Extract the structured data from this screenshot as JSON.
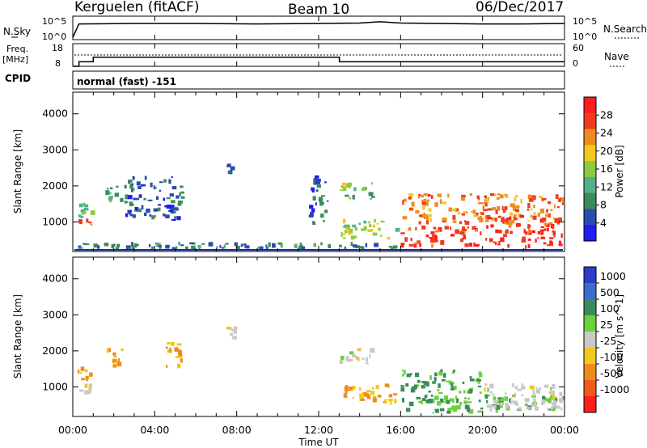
{
  "header": {
    "station": "Kerguelen (fitACF)",
    "beam": "Beam 10",
    "date": "06/Dec/2017"
  },
  "noise_panel": {
    "left_label": "N.Sky",
    "left_ticks": [
      "10^5",
      "10^0"
    ],
    "right_label": "N.Search",
    "right_ticks": [
      "10^5",
      "10^0"
    ]
  },
  "freq_panel": {
    "left_label_1": "Freq.",
    "left_label_2": "[MHz]",
    "left_ticks": [
      "18",
      "8"
    ],
    "right_label": "Nave",
    "right_ticks": [
      "60",
      "0"
    ]
  },
  "cpid": {
    "label": "CPID",
    "value": "normal (fast) -151"
  },
  "axis_x": {
    "label": "Time UT",
    "ticks": [
      "00:00",
      "04:00",
      "08:00",
      "12:00",
      "16:00",
      "20:00",
      "00:00"
    ]
  },
  "power_panel": {
    "ylabel": "Slant Range [km]",
    "yticks": [
      "1000",
      "2000",
      "3000",
      "4000"
    ],
    "colorbar_label": "Power [dB]",
    "colorbar_ticks": [
      "4",
      "8",
      "12",
      "16",
      "20",
      "24",
      "28"
    ]
  },
  "velocity_panel": {
    "ylabel": "Slant Range [km]",
    "yticks": [
      "1000",
      "2000",
      "3000",
      "4000"
    ],
    "colorbar_label": "Velocity [m s^-1]",
    "colorbar_ticks": [
      "1000",
      "500",
      "100",
      "25",
      "-25",
      "-100",
      "-500",
      "-1000"
    ]
  },
  "colors": {
    "power_scale": [
      "#1e1ef0",
      "#2a4cb0",
      "#3c8c5a",
      "#52b08a",
      "#8ccc3c",
      "#f0c81e",
      "#f08c1e",
      "#f03c1e",
      "#ff1e1e"
    ],
    "velocity_scale": [
      "#2a3cc8",
      "#3c6ccc",
      "#3c8c5a",
      "#6cd23c",
      "#c8c8c8",
      "#f0c81e",
      "#f08c1e",
      "#f05a1e",
      "#ff1e1e"
    ]
  },
  "chart_data": [
    {
      "type": "line",
      "name": "noise",
      "x": [
        0,
        0.3,
        3,
        6,
        9,
        12,
        14,
        15,
        16,
        19.9,
        20,
        22,
        24
      ],
      "y_log10": [
        0.5,
        3.6,
        3.7,
        3.7,
        3.6,
        3.7,
        3.8,
        4.1,
        3.8,
        3.6,
        3.6,
        3.6,
        3.7
      ],
      "xlim": [
        0,
        24
      ]
    },
    {
      "type": "line",
      "name": "frequency",
      "x": [
        0,
        0.3,
        1,
        13,
        13.01,
        24
      ],
      "y": [
        8,
        10,
        12,
        12,
        10,
        10
      ],
      "ylim": [
        8,
        18
      ],
      "xlim": [
        0,
        24
      ]
    },
    {
      "type": "heatmap",
      "panel": "power",
      "title": "",
      "xlabel": "Time UT",
      "ylabel": "Slant Range [km]",
      "xlim": [
        0,
        24
      ],
      "ylim": [
        180,
        4600
      ],
      "clim": [
        0,
        32
      ],
      "regions": [
        {
          "t0": 0.2,
          "t1": 1.0,
          "r0": 900,
          "r1": 1100,
          "level": 26
        },
        {
          "t0": 0.2,
          "t1": 1.2,
          "r0": 1100,
          "r1": 1600,
          "level": 14
        },
        {
          "t0": 0.2,
          "t1": 16,
          "r0": 200,
          "r1": 450,
          "level": 8
        },
        {
          "t0": 1.5,
          "t1": 2.5,
          "r0": 1500,
          "r1": 2100,
          "level": 11
        },
        {
          "t0": 2.5,
          "t1": 5.5,
          "r0": 1000,
          "r1": 2300,
          "level": 6
        },
        {
          "t0": 7.5,
          "t1": 8.2,
          "r0": 2300,
          "r1": 2700,
          "level": 7
        },
        {
          "t0": 11.5,
          "t1": 12.5,
          "r0": 900,
          "r1": 2300,
          "level": 6
        },
        {
          "t0": 13.0,
          "t1": 14.8,
          "r0": 1600,
          "r1": 2100,
          "level": 14
        },
        {
          "t0": 13.0,
          "t1": 16.0,
          "r0": 500,
          "r1": 1100,
          "level": 16
        },
        {
          "t0": 16.0,
          "t1": 20.0,
          "r0": 250,
          "r1": 900,
          "level": 28
        },
        {
          "t0": 16.0,
          "t1": 24.0,
          "r0": 900,
          "r1": 1800,
          "level": 24
        },
        {
          "t0": 20.0,
          "t1": 24.0,
          "r0": 250,
          "r1": 1200,
          "level": 28
        }
      ]
    },
    {
      "type": "heatmap",
      "panel": "velocity",
      "title": "",
      "xlabel": "Time UT",
      "ylabel": "Slant Range [km]",
      "xlim": [
        0,
        24
      ],
      "ylim": [
        180,
        4600
      ],
      "clim": [
        -1000,
        1000
      ],
      "regions": [
        {
          "t0": 0.2,
          "t1": 1.0,
          "r0": 1100,
          "r1": 1600,
          "level": -100
        },
        {
          "t0": 0.2,
          "t1": 1.0,
          "r0": 700,
          "r1": 1100,
          "level": 0
        },
        {
          "t0": 1.5,
          "t1": 2.5,
          "r0": 1500,
          "r1": 2100,
          "level": -100
        },
        {
          "t0": 4.5,
          "t1": 5.5,
          "r0": 1500,
          "r1": 2300,
          "level": -100
        },
        {
          "t0": 7.5,
          "t1": 8.2,
          "r0": 2300,
          "r1": 2700,
          "level": 0
        },
        {
          "t0": 13.0,
          "t1": 14.8,
          "r0": 1600,
          "r1": 2100,
          "level": 0
        },
        {
          "t0": 13.0,
          "t1": 16.0,
          "r0": 500,
          "r1": 1100,
          "level": -100
        },
        {
          "t0": 16.0,
          "t1": 24.0,
          "r0": 250,
          "r1": 800,
          "level": 100
        },
        {
          "t0": 16.0,
          "t1": 20.0,
          "r0": 800,
          "r1": 1500,
          "level": 100
        },
        {
          "t0": 20.0,
          "t1": 24.0,
          "r0": 300,
          "r1": 1100,
          "level": 0
        }
      ]
    }
  ]
}
